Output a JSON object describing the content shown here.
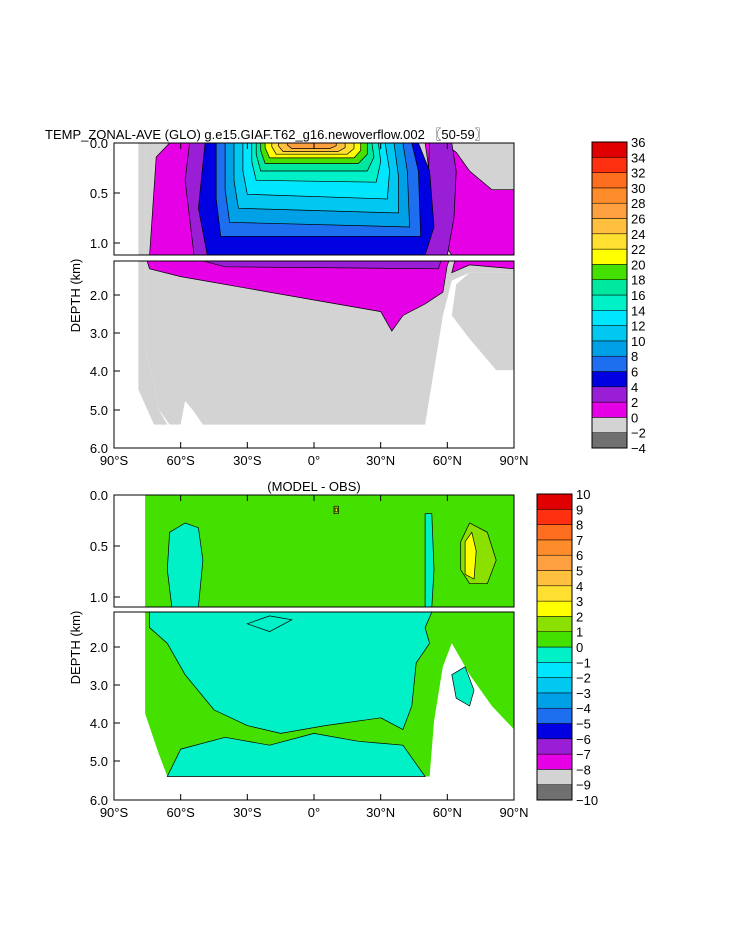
{
  "chart_data": [
    {
      "type": "heatmap",
      "title": "TEMP_ZONAL-AVE (GLO) g.e15.GIAF.T62_g16.newoverflow.002 〖50-59〗",
      "xlabel": "",
      "ylabel": "DEPTH (km)",
      "x_ticks": [
        "90°S",
        "60°S",
        "30°S",
        "0°",
        "30°N",
        "60°N",
        "90°N"
      ],
      "y_ticks_upper": [
        "0.0",
        "0.5",
        "1.0"
      ],
      "y_ticks_lower": [
        "2.0",
        "3.0",
        "4.0",
        "5.0",
        "6.0"
      ],
      "xlim": [
        -90,
        90
      ],
      "ylim": [
        6.0,
        0.0
      ],
      "upper_panel_depth_km": [
        0.0,
        1.2
      ],
      "lower_panel_depth_km": [
        1.2,
        6.0
      ],
      "colorbar": {
        "levels": [
          -4,
          -2,
          0,
          2,
          4,
          6,
          8,
          10,
          12,
          14,
          16,
          18,
          20,
          22,
          24,
          26,
          28,
          30,
          32,
          34,
          36
        ],
        "colors": [
          "#707070",
          "#d3d3d3",
          "#e600e6",
          "#9a1ed6",
          "#0000e0",
          "#1e6ef0",
          "#00a0e6",
          "#00c8f0",
          "#00e6ff",
          "#00f0c8",
          "#00e8a0",
          "#44e000",
          "#ffff00",
          "#ffe030",
          "#ffc040",
          "#ffa040",
          "#ff8c2a",
          "#ff6e1e",
          "#ff3010",
          "#e00000"
        ]
      },
      "regions": [
        {
          "value": 1.0,
          "points": [
            [
              -74,
              1.2
            ],
            [
              -71,
              0.15
            ],
            [
              -65,
              0.0
            ],
            [
              -47,
              0.0
            ],
            [
              -42,
              0.2
            ],
            [
              -40,
              0.6
            ],
            [
              -38,
              0.9
            ],
            [
              -40,
              1.2
            ]
          ]
        },
        {
          "value": 1.0,
          "points": [
            [
              50,
              0.0
            ],
            [
              58,
              0.0
            ],
            [
              64,
              0.1
            ],
            [
              70,
              0.3
            ],
            [
              80,
              0.5
            ],
            [
              90,
              0.5
            ],
            [
              90,
              1.2
            ],
            [
              62,
              1.2
            ],
            [
              56,
              1.0
            ]
          ]
        },
        {
          "value": 3.0,
          "points": [
            [
              -54,
              1.2
            ],
            [
              -58,
              0.4
            ],
            [
              -56,
              0.0
            ],
            [
              -43,
              0.0
            ],
            [
              -40,
              0.5
            ],
            [
              -38,
              1.2
            ]
          ]
        },
        {
          "value": 3.0,
          "points": [
            [
              52,
              0.0
            ],
            [
              62,
              0.0
            ],
            [
              64,
              0.3
            ],
            [
              63,
              0.8
            ],
            [
              60,
              1.2
            ],
            [
              50,
              1.2
            ]
          ]
        },
        {
          "value": 5.0,
          "points": [
            [
              -48,
              1.2
            ],
            [
              -52,
              0.7
            ],
            [
              -49,
              0.0
            ],
            [
              47,
              0.0
            ],
            [
              52,
              0.3
            ],
            [
              54,
              0.9
            ],
            [
              50,
              1.2
            ]
          ]
        },
        {
          "value": 7.0,
          "points": [
            [
              -42,
              1.0
            ],
            [
              -44,
              0.6
            ],
            [
              -44,
              0.0
            ],
            [
              44,
              0.0
            ],
            [
              47,
              0.3
            ],
            [
              48,
              1.0
            ]
          ]
        },
        {
          "value": 9.0,
          "points": [
            [
              -38,
              0.85
            ],
            [
              -40,
              0.5
            ],
            [
              -40,
              0.0
            ],
            [
              40,
              0.0
            ],
            [
              42,
              0.3
            ],
            [
              43,
              0.9
            ]
          ]
        },
        {
          "value": 11.0,
          "points": [
            [
              -34,
              0.7
            ],
            [
              -36,
              0.4
            ],
            [
              -36,
              0.0
            ],
            [
              36,
              0.0
            ],
            [
              38,
              0.35
            ],
            [
              38,
              0.75
            ]
          ]
        },
        {
          "value": 13.0,
          "points": [
            [
              -30,
              0.55
            ],
            [
              -32,
              0.3
            ],
            [
              -32,
              0.0
            ],
            [
              32,
              0.0
            ],
            [
              34,
              0.3
            ],
            [
              33,
              0.6
            ]
          ]
        },
        {
          "value": 15.0,
          "points": [
            [
              -26,
              0.4
            ],
            [
              -28,
              0.2
            ],
            [
              -28,
              0.0
            ],
            [
              29,
              0.0
            ],
            [
              30,
              0.2
            ],
            [
              28,
              0.42
            ]
          ]
        },
        {
          "value": 17.0,
          "points": [
            [
              -24,
              0.3
            ],
            [
              -26,
              0.12
            ],
            [
              -26,
              0.0
            ],
            [
              26,
              0.0
            ],
            [
              27,
              0.15
            ],
            [
              24,
              0.3
            ]
          ]
        },
        {
          "value": 19.0,
          "points": [
            [
              -22,
              0.22
            ],
            [
              -24,
              0.08
            ],
            [
              -24,
              0.0
            ],
            [
              24,
              0.0
            ],
            [
              24,
              0.12
            ],
            [
              20,
              0.22
            ]
          ]
        },
        {
          "value": 21.0,
          "points": [
            [
              -20,
              0.16
            ],
            [
              -22,
              0.05
            ],
            [
              -22,
              0.0
            ],
            [
              21,
              0.0
            ],
            [
              21,
              0.08
            ],
            [
              18,
              0.16
            ]
          ]
        },
        {
          "value": 23.0,
          "points": [
            [
              -17,
              0.12
            ],
            [
              -19,
              0.04
            ],
            [
              -19,
              0.0
            ],
            [
              18,
              0.0
            ],
            [
              18,
              0.06
            ],
            [
              15,
              0.12
            ]
          ]
        },
        {
          "value": 25.0,
          "points": [
            [
              -14,
              0.09
            ],
            [
              -16,
              0.03
            ],
            [
              -16,
              0.0
            ],
            [
              14,
              0.0
            ],
            [
              14,
              0.05
            ],
            [
              11,
              0.09
            ]
          ]
        },
        {
          "value": 27.0,
          "points": [
            [
              -10,
              0.06
            ],
            [
              -12,
              0.02
            ],
            [
              -12,
              0.0
            ],
            [
              10,
              0.0
            ],
            [
              10,
              0.03
            ],
            [
              7,
              0.06
            ]
          ]
        },
        {
          "value": 1.0,
          "points": [
            [
              -76,
              1.2
            ],
            [
              62,
              1.2
            ],
            [
              60,
              1.3
            ],
            [
              58,
              2.0
            ],
            [
              50,
              2.3
            ],
            [
              40,
              2.6
            ],
            [
              35,
              3.0
            ],
            [
              30,
              2.5
            ],
            [
              0,
              2.2
            ],
            [
              -30,
              1.9
            ],
            [
              -60,
              1.6
            ],
            [
              -74,
              1.4
            ]
          ]
        },
        {
          "value": 1.0,
          "points": [
            [
              64,
              1.2
            ],
            [
              90,
              1.2
            ],
            [
              90,
              1.4
            ],
            [
              70,
              1.3
            ],
            [
              62,
              1.5
            ]
          ]
        },
        {
          "value": 3.0,
          "points": [
            [
              -60,
              1.2
            ],
            [
              58,
              1.2
            ],
            [
              56,
              1.4
            ],
            [
              -40,
              1.35
            ]
          ]
        }
      ],
      "background_value": -1.0,
      "ocean_mask": [
        [
          -76,
          0.0
        ],
        [
          -76,
          3.5
        ],
        [
          -72,
          4.3
        ],
        [
          -70,
          5.0
        ],
        [
          -65,
          5.4
        ],
        [
          -60,
          5.4
        ],
        [
          -58,
          4.8
        ],
        [
          -55,
          5.0
        ],
        [
          -50,
          5.4
        ],
        [
          50,
          5.4
        ],
        [
          54,
          4.0
        ],
        [
          58,
          2.6
        ],
        [
          62,
          1.7
        ],
        [
          70,
          1.5
        ],
        [
          80,
          1.5
        ],
        [
          90,
          1.5
        ],
        [
          90,
          0.0
        ]
      ]
    },
    {
      "type": "heatmap",
      "title": "(MODEL - OBS)",
      "xlabel": "",
      "ylabel": "DEPTH (km)",
      "x_ticks": [
        "90°S",
        "60°S",
        "30°S",
        "0°",
        "30°N",
        "60°N",
        "90°N"
      ],
      "y_ticks_upper": [
        "0.0",
        "0.5",
        "1.0"
      ],
      "y_ticks_lower": [
        "2.0",
        "3.0",
        "4.0",
        "5.0",
        "6.0"
      ],
      "xlim": [
        -90,
        90
      ],
      "ylim": [
        6.0,
        0.0
      ],
      "upper_panel_depth_km": [
        0.0,
        1.2
      ],
      "lower_panel_depth_km": [
        1.2,
        6.0
      ],
      "colorbar": {
        "levels": [
          -10,
          -9,
          -8,
          -7,
          -6,
          -5,
          -4,
          -3,
          -2,
          -1,
          0,
          1,
          2,
          3,
          4,
          5,
          6,
          7,
          8,
          9,
          10
        ],
        "colors": [
          "#707070",
          "#d3d3d3",
          "#e600e6",
          "#9a1ed6",
          "#0000e0",
          "#1e6ef0",
          "#00a0e6",
          "#00c8f0",
          "#00e6ff",
          "#00f0c8",
          "#44e000",
          "#8ce000",
          "#ffff00",
          "#ffe030",
          "#ffc040",
          "#ffa040",
          "#ff8c2a",
          "#ff6e1e",
          "#ff3010",
          "#e00000"
        ]
      },
      "regions": [
        {
          "value": -0.5,
          "points": [
            [
              -65,
              0.4
            ],
            [
              -58,
              0.3
            ],
            [
              -52,
              0.35
            ],
            [
              -50,
              0.7
            ],
            [
              -52,
              1.2
            ],
            [
              -64,
              1.2
            ],
            [
              -66,
              0.8
            ]
          ]
        },
        {
          "value": -0.5,
          "points": [
            [
              50,
              0.2
            ],
            [
              53,
              0.2
            ],
            [
              54,
              0.8
            ],
            [
              53,
              1.2
            ],
            [
              50,
              1.2
            ]
          ]
        },
        {
          "value": -0.5,
          "points": [
            [
              -74,
              1.2
            ],
            [
              54,
              1.2
            ],
            [
              50,
              1.6
            ],
            [
              52,
              2.0
            ],
            [
              46,
              2.5
            ],
            [
              44,
              3.6
            ],
            [
              40,
              4.2
            ],
            [
              30,
              3.9
            ],
            [
              5,
              4.1
            ],
            [
              -15,
              4.3
            ],
            [
              -30,
              4.1
            ],
            [
              -45,
              3.7
            ],
            [
              -58,
              2.8
            ],
            [
              -66,
              2.0
            ],
            [
              -74,
              1.6
            ]
          ]
        },
        {
          "value": -0.5,
          "points": [
            [
              -60,
              4.7
            ],
            [
              -40,
              4.4
            ],
            [
              -20,
              4.6
            ],
            [
              0,
              4.3
            ],
            [
              20,
              4.5
            ],
            [
              40,
              4.6
            ],
            [
              50,
              5.4
            ],
            [
              -66,
              5.4
            ]
          ]
        },
        {
          "value": -0.5,
          "points": [
            [
              -30,
              1.5
            ],
            [
              -20,
              1.3
            ],
            [
              -10,
              1.4
            ],
            [
              -20,
              1.7
            ]
          ]
        },
        {
          "value": -0.5,
          "points": [
            [
              62,
              2.8
            ],
            [
              68,
              2.6
            ],
            [
              72,
              3.2
            ],
            [
              70,
              3.6
            ],
            [
              64,
              3.4
            ]
          ]
        },
        {
          "value": 1.5,
          "points": [
            [
              66,
              0.5
            ],
            [
              70,
              0.3
            ],
            [
              78,
              0.4
            ],
            [
              82,
              0.7
            ],
            [
              78,
              0.95
            ],
            [
              70,
              0.95
            ],
            [
              66,
              0.8
            ]
          ]
        },
        {
          "value": 2.5,
          "points": [
            [
              68,
              0.5
            ],
            [
              71,
              0.4
            ],
            [
              73,
              0.6
            ],
            [
              72,
              0.9
            ],
            [
              68,
              0.85
            ]
          ]
        },
        {
          "value": 1.5,
          "points": [
            [
              9,
              0.12
            ],
            [
              11,
              0.12
            ],
            [
              11,
              0.2
            ],
            [
              9,
              0.2
            ]
          ]
        },
        {
          "value": 2.5,
          "points": [
            [
              9.5,
              0.14
            ],
            [
              10.5,
              0.14
            ],
            [
              10.5,
              0.18
            ],
            [
              9.5,
              0.18
            ]
          ]
        }
      ],
      "background_value": 0.5,
      "ocean_mask": [
        [
          -76,
          0.0
        ],
        [
          -76,
          3.8
        ],
        [
          -70,
          4.8
        ],
        [
          -66,
          5.4
        ],
        [
          52,
          5.4
        ],
        [
          54,
          4.0
        ],
        [
          58,
          2.6
        ],
        [
          62,
          2.0
        ],
        [
          70,
          2.8
        ],
        [
          80,
          3.6
        ],
        [
          90,
          4.2
        ],
        [
          90,
          0.0
        ]
      ]
    }
  ]
}
